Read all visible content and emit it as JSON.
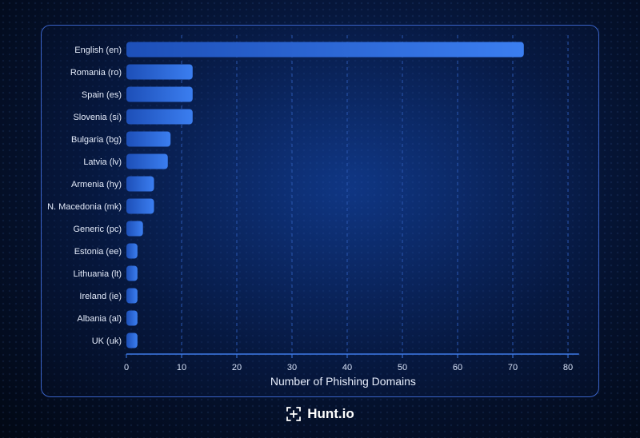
{
  "chart_data": {
    "type": "bar",
    "orientation": "horizontal",
    "categories": [
      "English (en)",
      "Romania (ro)",
      "Spain (es)",
      "Slovenia (si)",
      "Bulgaria (bg)",
      "Latvia (lv)",
      "Armenia (hy)",
      "N. Macedonia (mk)",
      "Generic (pc)",
      "Estonia (ee)",
      "Lithuania (lt)",
      "Ireland (ie)",
      "Albania (al)",
      "UK (uk)"
    ],
    "values": [
      72,
      12,
      12,
      12,
      8,
      7.5,
      5,
      5,
      3,
      2,
      2,
      2,
      2,
      2
    ],
    "xlabel": "Number of Phishing Domains",
    "xticks": [
      "0",
      "10",
      "20",
      "30",
      "40",
      "50",
      "60",
      "70",
      "80"
    ],
    "xlim": [
      0,
      82
    ],
    "bar_color": "#2f6fe0",
    "grid": "vertical dashed"
  },
  "brand": {
    "name": "Hunt.io",
    "icon": "hunt-logo-icon"
  }
}
